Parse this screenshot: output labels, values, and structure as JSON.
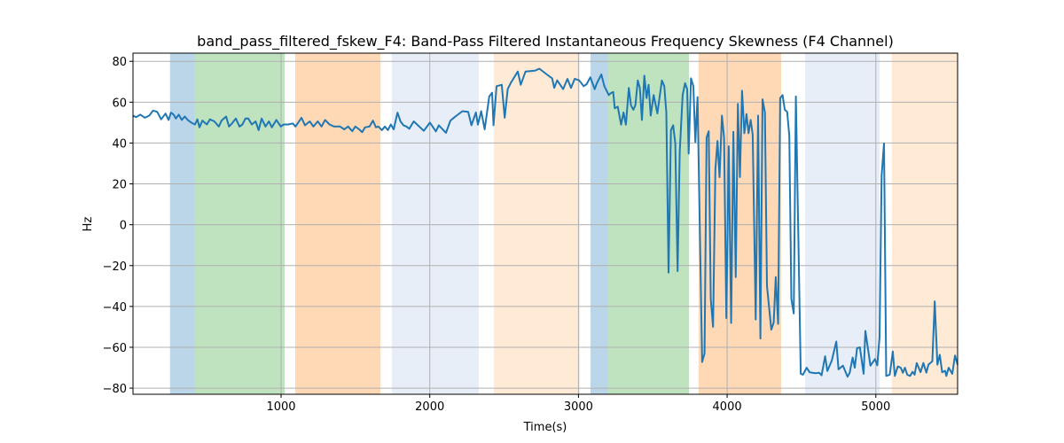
{
  "chart_data": {
    "type": "line",
    "title": "band_pass_filtered_fskew_F4: Band-Pass Filtered Instantaneous Frequency Skewness (F4 Channel)",
    "xlabel": "Time(s)",
    "ylabel": "Hz",
    "xlim": [
      4,
      5550
    ],
    "ylim": [
      -83,
      84
    ],
    "xticks": [
      1000,
      2000,
      3000,
      4000,
      5000
    ],
    "yticks": [
      -80,
      -60,
      -40,
      -20,
      0,
      20,
      40,
      60,
      80
    ],
    "grid": true,
    "line_color": "#1f77b4",
    "spans": [
      {
        "x0": 253,
        "x1": 420,
        "color": "#1f77b4",
        "alpha": 0.3
      },
      {
        "x0": 420,
        "x1": 1024,
        "color": "#2ca02c",
        "alpha": 0.3
      },
      {
        "x0": 1095,
        "x1": 1668,
        "color": "#ff7f0e",
        "alpha": 0.3
      },
      {
        "x0": 1745,
        "x1": 2330,
        "color": "#aec7e8",
        "alpha": 0.3
      },
      {
        "x0": 2431,
        "x1": 3010,
        "color": "#ffbb78",
        "alpha": 0.3
      },
      {
        "x0": 3081,
        "x1": 3200,
        "color": "#1f77b4",
        "alpha": 0.3
      },
      {
        "x0": 3200,
        "x1": 3743,
        "color": "#2ca02c",
        "alpha": 0.3
      },
      {
        "x0": 3808,
        "x1": 4363,
        "color": "#ff7f0e",
        "alpha": 0.3
      },
      {
        "x0": 4524,
        "x1": 5025,
        "color": "#aec7e8",
        "alpha": 0.3
      },
      {
        "x0": 5108,
        "x1": 5550,
        "color": "#ffbb78",
        "alpha": 0.3
      }
    ],
    "x": [
      4,
      24,
      54,
      84,
      113,
      139,
      167,
      193,
      223,
      243,
      259,
      278,
      292,
      312,
      332,
      352,
      372,
      398,
      421,
      437,
      451,
      471,
      501,
      521,
      551,
      581,
      600,
      630,
      650,
      670,
      696,
      720,
      740,
      760,
      779,
      803,
      829,
      849,
      869,
      895,
      918,
      938,
      968,
      998,
      1018,
      1048,
      1078,
      1097,
      1137,
      1161,
      1193,
      1217,
      1247,
      1272,
      1296,
      1326,
      1356,
      1396,
      1425,
      1451,
      1479,
      1499,
      1525,
      1545,
      1565,
      1595,
      1618,
      1638,
      1654,
      1678,
      1698,
      1718,
      1738,
      1757,
      1783,
      1803,
      1823,
      1843,
      1862,
      1892,
      1960,
      2001,
      2041,
      2061,
      2109,
      2139,
      2180,
      2220,
      2258,
      2280,
      2310,
      2324,
      2346,
      2369,
      2400,
      2419,
      2429,
      2449,
      2484,
      2504,
      2524,
      2544,
      2568,
      2592,
      2612,
      2644,
      2707,
      2737,
      2787,
      2823,
      2837,
      2857,
      2897,
      2926,
      2950,
      2975,
      3005,
      3035,
      3055,
      3080,
      3109,
      3124,
      3154,
      3174,
      3204,
      3214,
      3234,
      3244,
      3264,
      3287,
      3303,
      3319,
      3339,
      3353,
      3369,
      3383,
      3399,
      3413,
      3427,
      3443,
      3458,
      3472,
      3486,
      3506,
      3531,
      3561,
      3577,
      3591,
      3606,
      3622,
      3637,
      3651,
      3667,
      3681,
      3701,
      3717,
      3731,
      3741,
      3757,
      3773,
      3786,
      3801,
      3816,
      3832,
      3848,
      3862,
      3876,
      3890,
      3905,
      3921,
      3935,
      3949,
      3965,
      3979,
      3995,
      4011,
      4027,
      4042,
      4058,
      4072,
      4086,
      4100,
      4116,
      4130,
      4144,
      4158,
      4172,
      4192,
      4208,
      4224,
      4238,
      4254,
      4268,
      4297,
      4313,
      4327,
      4343,
      4357,
      4373,
      4388,
      4404,
      4418,
      4432,
      4448,
      4462,
      4495,
      4510,
      4535,
      4555,
      4595,
      4619,
      4635,
      4659,
      4674,
      4704,
      4734,
      4749,
      4779,
      4810,
      4824,
      4844,
      4858,
      4874,
      4893,
      4918,
      4930,
      4964,
      4994,
      5010,
      5025,
      5039,
      5055,
      5070,
      5094,
      5114,
      5128,
      5148,
      5168,
      5182,
      5196,
      5211,
      5231,
      5247,
      5261,
      5275,
      5301,
      5320,
      5340,
      5354,
      5380,
      5396,
      5414,
      5430,
      5446,
      5466,
      5474,
      5490,
      5514,
      5533,
      5550
    ],
    "y": [
      53.4,
      52.7,
      53.9,
      52.4,
      53.4,
      55.9,
      55.3,
      51.6,
      54.4,
      51.3,
      54.9,
      53.9,
      52,
      53.9,
      51.3,
      53,
      51.3,
      49.9,
      49.1,
      51.6,
      47.7,
      51,
      49.1,
      51.6,
      50.6,
      48.1,
      51,
      53,
      48.1,
      49.6,
      52,
      48.1,
      49.1,
      52,
      52,
      49.1,
      50.6,
      46.3,
      52,
      48.1,
      50.6,
      47.7,
      51.3,
      48.1,
      49.1,
      49.1,
      49.6,
      48.1,
      52.4,
      48.7,
      50.6,
      48.1,
      50.6,
      48.1,
      51.3,
      49.1,
      48.1,
      48.1,
      46.7,
      48.1,
      45.8,
      48.1,
      46.7,
      45.3,
      47.7,
      48.1,
      51,
      47.7,
      48.1,
      46.3,
      48.1,
      46.3,
      49.1,
      46.7,
      54.9,
      50.6,
      48.7,
      48.1,
      47,
      50.6,
      46,
      50,
      45.7,
      48.7,
      45,
      51,
      53.4,
      55.6,
      55.3,
      48.7,
      55,
      49,
      55.6,
      46.7,
      62.8,
      64.6,
      48.7,
      67.8,
      68.5,
      52.4,
      66.4,
      69.3,
      72.2,
      75,
      68.5,
      75,
      75.4,
      76.4,
      73.6,
      71.7,
      67,
      70.7,
      66.4,
      71.4,
      67,
      71.4,
      70.7,
      67.8,
      68.8,
      72.2,
      66.4,
      69.3,
      73.6,
      67.8,
      63.5,
      64.2,
      65,
      57,
      57.8,
      49,
      55,
      49,
      67,
      58.5,
      56.3,
      58.5,
      70.7,
      67,
      51.3,
      73,
      62,
      68.5,
      53.4,
      63.5,
      54.5,
      70.7,
      67.8,
      55,
      -23.4,
      46.3,
      48.7,
      39.8,
      -22.7,
      35.5,
      63.5,
      69.3,
      66.4,
      34.8,
      71.7,
      67.8,
      40.5,
      62.5,
      -0.4,
      -67.2,
      -63,
      42.7,
      45.8,
      -36.3,
      -50,
      26.9,
      41,
      23.3,
      53.4,
      42.7,
      -45.7,
      38.4,
      -48.1,
      45.5,
      -25.6,
      59.2,
      23.3,
      65.6,
      44.8,
      54.2,
      44.8,
      51.3,
      44.1,
      -46.4,
      53.4,
      -55.7,
      61.4,
      55,
      -29.9,
      -51.4,
      -47.8,
      -25.6,
      -48.5,
      62,
      63.5,
      56.3,
      55.3,
      43.4,
      -36.3,
      -43.5,
      62.8,
      -73,
      -73.4,
      -70,
      -72.3,
      -72.7,
      -72.5,
      -73.7,
      -64.4,
      -71.6,
      -66.5,
      -57.2,
      -70.8,
      -69,
      -74.4,
      -72.5,
      -65,
      -70,
      -60.5,
      -60,
      -73,
      -52,
      -69,
      -65.8,
      -68.8,
      -55,
      24,
      39.8,
      -74,
      -73.4,
      -62,
      -74,
      -69.4,
      -70,
      -72.5,
      -70,
      -73.4,
      -74,
      -72,
      -73.4,
      -67.7,
      -72.2,
      -67.7,
      -72.4,
      -68.5,
      -66.8,
      -37.5,
      -68.5,
      -63.7,
      -72.2,
      -71.5,
      -74,
      -70,
      -73,
      -64,
      -68.5
    ]
  }
}
